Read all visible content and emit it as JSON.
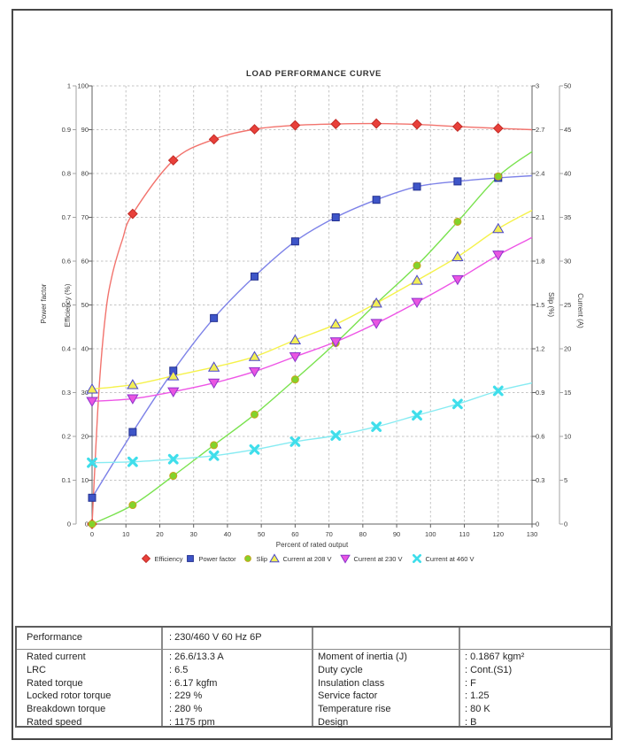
{
  "chart_data": {
    "type": "line",
    "title": "LOAD PERFORMANCE CURVE",
    "x_axis": {
      "title": "Percent of rated output",
      "min": 0,
      "max": 130,
      "ticks": [
        "0",
        "10",
        "20",
        "30",
        "40",
        "50",
        "60",
        "70",
        "80",
        "90",
        "100",
        "110",
        "120",
        "130"
      ]
    },
    "axes": {
      "power_factor": {
        "title": "Power factor",
        "min": 0,
        "max": 1,
        "ticks": [
          "0",
          "0.1",
          "0.2",
          "0.3",
          "0.4",
          "0.5",
          "0.6",
          "0.7",
          "0.8",
          "0.9",
          "1"
        ]
      },
      "efficiency": {
        "title": "Efficiency (%)",
        "min": 0,
        "max": 100,
        "ticks": [
          "0",
          "10",
          "20",
          "30",
          "40",
          "50",
          "60",
          "70",
          "80",
          "90",
          "100"
        ]
      },
      "slip": {
        "title": "Slip (%)",
        "min": 0,
        "max": 3,
        "ticks": [
          "0",
          "0.3",
          "0.6",
          "0.9",
          "1.2",
          "1.5",
          "1.8",
          "2.1",
          "2.4",
          "2.7",
          "3"
        ]
      },
      "current": {
        "title": "Current (A)",
        "min": 0,
        "max": 50,
        "ticks": [
          "0",
          "5",
          "10",
          "15",
          "20",
          "25",
          "30",
          "35",
          "40",
          "45",
          "50"
        ]
      }
    },
    "x": [
      0,
      12,
      24,
      36,
      48,
      60,
      72,
      84,
      96,
      108,
      120
    ],
    "series": [
      {
        "name": "Efficiency",
        "axis": "efficiency",
        "marker": "diamond",
        "line_color": "#f2736d",
        "marker_color": "#e8403a",
        "marker_stroke": "#c22b26",
        "values": [
          0,
          70.8,
          83,
          87.8,
          90.1,
          91,
          91.3,
          91.4,
          91.2,
          90.7,
          90.3
        ],
        "lead": [
          [
            2,
            30
          ],
          [
            4,
            48
          ],
          [
            6,
            57
          ],
          [
            9,
            65
          ]
        ],
        "end": [
          130,
          90
        ]
      },
      {
        "name": "Power factor",
        "axis": "power_factor",
        "marker": "square",
        "line_color": "#7d82e8",
        "marker_color": "#3e55c8",
        "marker_stroke": "#23308f",
        "values": [
          0.06,
          0.21,
          0.35,
          0.47,
          0.565,
          0.645,
          0.7,
          0.74,
          0.77,
          0.782,
          0.79
        ],
        "lead": [],
        "end": [
          130,
          0.795
        ]
      },
      {
        "name": "Slip",
        "axis": "slip",
        "marker": "circle",
        "line_color": "#79e24e",
        "marker_color": "#82d32b",
        "marker_stroke": "#c9a21d",
        "values": [
          0,
          0.13,
          0.33,
          0.54,
          0.75,
          0.99,
          1.24,
          1.51,
          1.77,
          2.07,
          2.38
        ],
        "lead": [],
        "end": [
          130,
          2.55
        ]
      },
      {
        "name": "Current at 208 V",
        "axis": "current",
        "marker": "triangle-up",
        "line_color": "#f5f24b",
        "marker_color": "#f2ee55",
        "marker_stroke": "#4946cd",
        "values": [
          15.4,
          15.9,
          16.9,
          17.9,
          19.1,
          21,
          22.8,
          25.2,
          27.8,
          30.5,
          33.7
        ],
        "lead": [],
        "end": [
          130,
          35.8
        ]
      },
      {
        "name": "Current at 230 V",
        "axis": "current",
        "marker": "triangle-down",
        "line_color": "#ee55e6",
        "marker_color": "#e955e1",
        "marker_stroke": "#8c33cc",
        "values": [
          14,
          14.3,
          15.1,
          16.1,
          17.4,
          19.1,
          20.8,
          22.9,
          25.3,
          27.9,
          30.7
        ],
        "lead": [],
        "end": [
          130,
          32.7
        ]
      },
      {
        "name": "Current at 460 V",
        "axis": "current",
        "marker": "xmark",
        "line_color": "#86ebf2",
        "marker_color": "#3fdeeb",
        "marker_stroke": "none",
        "values": [
          7,
          7.1,
          7.4,
          7.8,
          8.5,
          9.4,
          10.1,
          11.1,
          12.4,
          13.7,
          15.2
        ],
        "lead": [],
        "end": [
          130,
          16.1
        ]
      }
    ],
    "grid": true,
    "legend_position": "bottom",
    "colors": {
      "grid": "#c4c4c4",
      "axis_dark": "#606060",
      "axis_light": "#a3a3a3",
      "label": "#3c3c3c",
      "title": "#333333"
    }
  },
  "table": {
    "header": {
      "label": "Performance",
      "value": ": 230/460 V 60 Hz 6P"
    },
    "rows": [
      {
        "l1": "Rated current",
        "v1": ": 26.6/13.3 A",
        "l2": "Moment of inertia (J)",
        "v2": ": 0.1867 kgm²"
      },
      {
        "l1": "LRC",
        "v1": ": 6.5",
        "l2": "Duty cycle",
        "v2": ": Cont.(S1)"
      },
      {
        "l1": "Rated torque",
        "v1": ": 6.17 kgfm",
        "l2": "Insulation class",
        "v2": ": F"
      },
      {
        "l1": "Locked rotor torque",
        "v1": ": 229 %",
        "l2": "Service factor",
        "v2": ": 1.25"
      },
      {
        "l1": "Breakdown torque",
        "v1": ": 280 %",
        "l2": "Temperature rise",
        "v2": ": 80 K"
      },
      {
        "l1": "Rated speed",
        "v1": ": 1175 rpm",
        "l2": "Design",
        "v2": ": B"
      }
    ]
  }
}
